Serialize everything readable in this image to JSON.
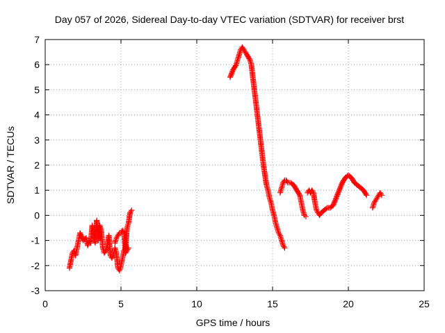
{
  "chart_data": {
    "type": "scatter",
    "title": "Day 057 of 2026, Sidereal Day-to-day VTEC variation (SDTVAR) for receiver brst",
    "xlabel": "GPS time / hours",
    "ylabel": "SDTVAR / TECUs",
    "xlim": [
      0,
      25
    ],
    "ylim": [
      -3,
      7
    ],
    "xticks": [
      "0",
      "5",
      "10",
      "15",
      "20",
      "25"
    ],
    "yticks": [
      "-3",
      "-2",
      "-1",
      "0",
      "1",
      "2",
      "3",
      "4",
      "5",
      "6",
      "7"
    ],
    "grid": true,
    "marker": "plus",
    "color": "#ff0000",
    "segments": [
      {
        "x": [
          1.6,
          1.8,
          1.9,
          2.0,
          2.1,
          2.2,
          2.3,
          2.5,
          2.7,
          2.8,
          2.9,
          3.0,
          3.1,
          3.2,
          3.3,
          3.4,
          3.5,
          3.6,
          3.7,
          3.8,
          3.9,
          4.0,
          4.1,
          4.2,
          4.3,
          4.4,
          4.5,
          4.6,
          4.7,
          4.8,
          4.9,
          5.0,
          5.1,
          5.2,
          5.3,
          5.4,
          5.5,
          5.6,
          5.7
        ],
        "y": [
          -2.1,
          -1.5,
          -1.4,
          -1.6,
          -1.3,
          -1.0,
          -0.7,
          -1.0,
          -0.9,
          -1.2,
          -1.0,
          -1.1,
          -0.4,
          -0.9,
          -1.1,
          -0.2,
          -1.0,
          -0.4,
          -0.6,
          -1.3,
          -1.5,
          -1.4,
          -1.2,
          -0.8,
          -1.6,
          -1.7,
          -1.6,
          -1.3,
          -1.5,
          -2.1,
          -2.2,
          -2.0,
          -1.7,
          -1.4,
          -1.3,
          -0.5,
          -0.3,
          0.1,
          0.2
        ]
      },
      {
        "x": [
          4.6,
          4.7,
          4.8,
          4.9,
          5.0,
          5.1,
          5.2,
          5.3,
          5.4,
          5.5
        ],
        "y": [
          -1.1,
          -0.9,
          -0.8,
          -0.7,
          -0.7,
          -0.6,
          -0.7,
          -1.5,
          -1.4,
          -1.3
        ]
      },
      {
        "x": [
          12.2,
          12.4,
          12.6,
          12.7,
          12.8,
          12.9,
          13.0,
          13.1,
          13.2,
          13.3,
          13.5,
          13.6,
          13.7,
          13.8,
          13.9,
          14.0,
          14.1,
          14.2,
          14.3,
          14.4,
          14.5,
          14.6,
          14.7,
          14.8,
          14.9,
          15.0,
          15.1,
          15.2,
          15.3,
          15.4,
          15.5,
          15.6,
          15.7,
          15.8
        ],
        "y": [
          5.5,
          5.8,
          6.0,
          6.2,
          6.4,
          6.6,
          6.7,
          6.6,
          6.5,
          6.4,
          6.2,
          6.0,
          5.5,
          5.0,
          4.5,
          4.0,
          3.5,
          3.0,
          2.5,
          2.0,
          1.6,
          1.2,
          1.0,
          0.7,
          0.5,
          0.2,
          0.0,
          -0.3,
          -0.5,
          -0.7,
          -0.8,
          -1.0,
          -1.2,
          -1.3
        ]
      },
      {
        "x": [
          15.5,
          15.6,
          15.7,
          15.8,
          15.9,
          16.0,
          16.2,
          16.4,
          16.6,
          16.8,
          16.9,
          17.0,
          17.1,
          17.2
        ],
        "y": [
          0.9,
          1.1,
          1.3,
          1.4,
          1.4,
          1.3,
          1.3,
          1.2,
          1.0,
          0.8,
          0.5,
          0.2,
          0.0,
          -0.05
        ]
      },
      {
        "x": [
          17.3,
          17.4,
          17.5,
          17.6,
          17.7,
          17.8,
          17.9,
          18.0,
          18.1,
          18.2,
          18.4,
          18.6,
          18.8,
          19.0,
          19.2,
          19.4,
          19.6,
          19.8,
          20.0,
          20.2,
          20.4,
          20.6,
          20.8,
          21.0,
          21.2
        ],
        "y": [
          0.9,
          1.0,
          0.9,
          1.0,
          0.9,
          0.5,
          0.2,
          0.1,
          0.0,
          0.1,
          0.2,
          0.3,
          0.3,
          0.4,
          0.7,
          1.0,
          1.3,
          1.5,
          1.6,
          1.5,
          1.3,
          1.2,
          1.1,
          1.0,
          0.8
        ]
      },
      {
        "x": [
          21.6,
          21.7,
          21.8,
          21.9,
          22.0,
          22.1,
          22.2
        ],
        "y": [
          0.3,
          0.5,
          0.6,
          0.7,
          0.8,
          0.9,
          0.8
        ]
      }
    ]
  }
}
